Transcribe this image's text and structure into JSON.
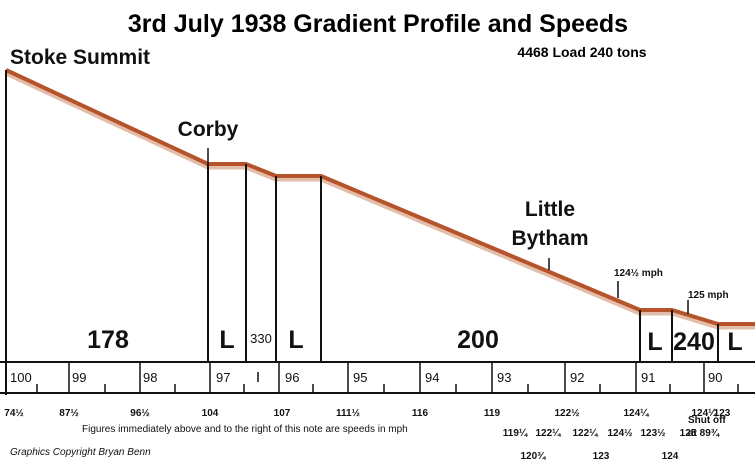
{
  "title": "3rd July 1938 Gradient Profile and Speeds",
  "load_note": "4468 Load 240 tons",
  "stations": {
    "stoke_summit": "Stoke Summit",
    "corby": "Corby",
    "little_line1": "Little",
    "little_line2": "Bytham"
  },
  "gradients": {
    "g178": "178",
    "l1": "L",
    "g330": "330",
    "l2": "L",
    "g200": "200",
    "l3": "L",
    "g240": "240",
    "l4": "L"
  },
  "annotations": {
    "speed_124_half": "124½ mph",
    "speed_125": "125 mph"
  },
  "mileposts": [
    "100",
    "99",
    "98",
    "97",
    "96",
    "95",
    "94",
    "93",
    "92",
    "91",
    "90"
  ],
  "speeds_row1": [
    "74½",
    "87½",
    "96½",
    "104",
    "107",
    "111½",
    "116",
    "119",
    "122½",
    "124¼",
    "124¼",
    "123"
  ],
  "speeds_row2": [
    "119¼",
    "122¼",
    "122¼",
    "124½",
    "123½",
    "125"
  ],
  "speeds_row3": [
    "120¾",
    "123",
    "124"
  ],
  "shut_off": [
    "Shut off",
    "at 89¾"
  ],
  "note": "Figures immediately above and to the right of this note are speeds in mph",
  "credit": "Graphics Copyright Bryan Benn",
  "colors": {
    "profile": "#b5532b",
    "profile_shadow": "#d9a184",
    "line": "#111111"
  }
}
